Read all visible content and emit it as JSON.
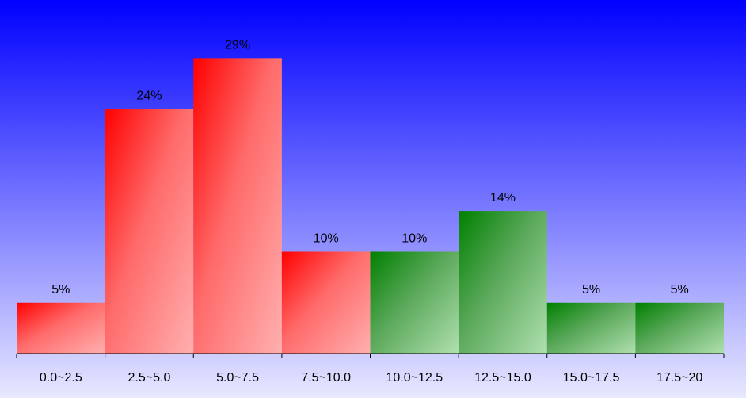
{
  "chart_data": {
    "type": "bar",
    "categories": [
      "0.0~2.5",
      "2.5~5.0",
      "5.0~7.5",
      "7.5~10.0",
      "10.0~12.5",
      "12.5~15.0",
      "15.0~17.5",
      "17.5~20"
    ],
    "values": [
      5,
      24,
      29,
      10,
      10,
      14,
      5,
      5
    ],
    "data_labels": [
      "5%",
      "24%",
      "29%",
      "10%",
      "10%",
      "14%",
      "5%",
      "5%"
    ],
    "bar_colors": [
      "red",
      "red",
      "red",
      "red",
      "green",
      "green",
      "green",
      "green"
    ],
    "ylim": [
      0,
      35
    ],
    "title": "",
    "xlabel": "",
    "ylabel": "",
    "grid": false,
    "legend": "none"
  },
  "colors": {
    "background_top": "#0000ff",
    "background_bottom": "#e8e8ff",
    "red_dark": "#ff0000",
    "red_light": "#ffb0b0",
    "green_dark": "#008000",
    "green_light": "#b0e0b0"
  }
}
